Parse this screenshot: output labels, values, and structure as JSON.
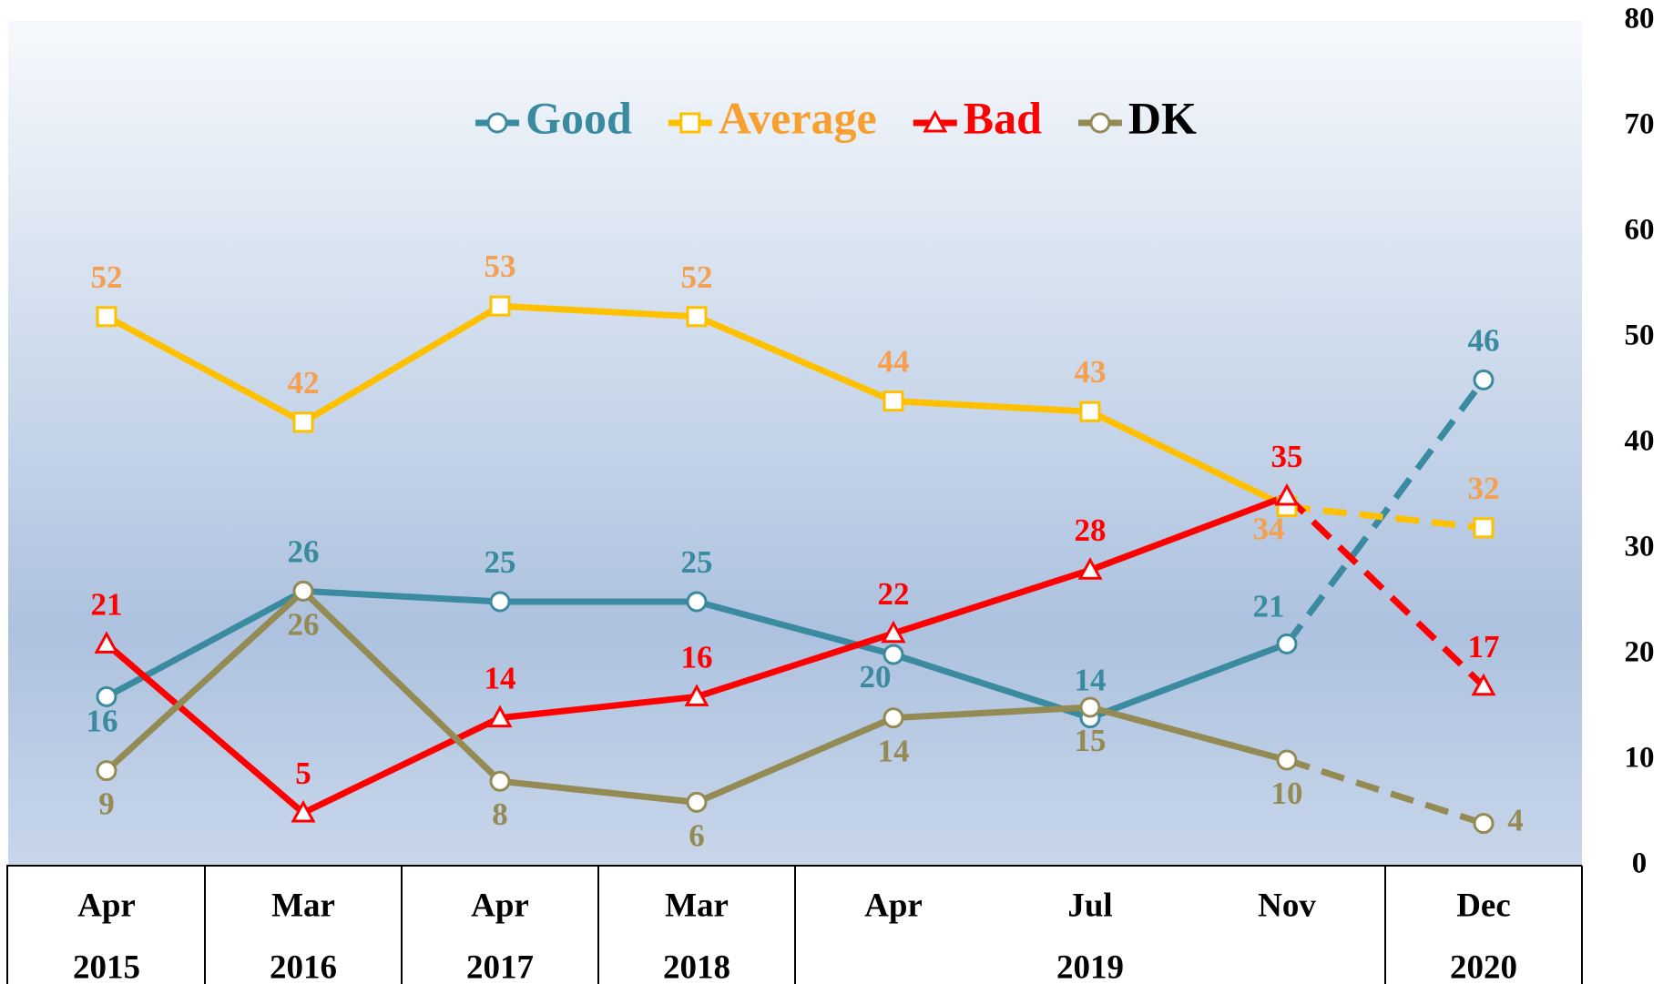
{
  "chart_data": {
    "type": "line",
    "groups": [
      {
        "year": "2015",
        "months": [
          "Apr"
        ]
      },
      {
        "year": "2016",
        "months": [
          "Mar"
        ]
      },
      {
        "year": "2017",
        "months": [
          "Apr"
        ]
      },
      {
        "year": "2018",
        "months": [
          "Mar"
        ]
      },
      {
        "year": "2019",
        "months": [
          "Apr",
          "Jul",
          "Nov"
        ]
      },
      {
        "year": "2020",
        "months": [
          "Dec"
        ]
      }
    ],
    "series": [
      {
        "name": "Good",
        "color": "#3a8aa0",
        "label_color": "#3a8aa0",
        "legend_color": "#3a8aa0",
        "marker": "circle",
        "label_position": "above",
        "dash_last_segment": true,
        "values": [
          16,
          26,
          25,
          25,
          20,
          14,
          21,
          46
        ]
      },
      {
        "name": "Average",
        "color": "#ffc000",
        "label_color": "#f4a050",
        "legend_color": "#f7a030",
        "marker": "square",
        "label_position": "above",
        "dash_last_segment": true,
        "values": [
          52,
          42,
          53,
          52,
          44,
          43,
          34,
          32
        ]
      },
      {
        "name": "Bad",
        "color": "#ff0000",
        "label_color": "#ff0000",
        "legend_color": "#ff0000",
        "marker": "triangle",
        "label_position": "above",
        "dash_last_segment": true,
        "values": [
          21,
          5,
          14,
          16,
          22,
          28,
          35,
          17
        ]
      },
      {
        "name": "DK",
        "color": "#948a54",
        "label_color": "#948a54",
        "legend_color": "#000000",
        "marker": "circle",
        "label_position": "below",
        "dash_last_segment": true,
        "values": [
          9,
          26,
          8,
          6,
          14,
          15,
          10,
          4
        ]
      }
    ],
    "ylim": [
      0,
      80
    ],
    "yticks": [
      0,
      10,
      20,
      30,
      40,
      50,
      60,
      70,
      80
    ],
    "y_axis_side": "right",
    "legend": "top"
  }
}
